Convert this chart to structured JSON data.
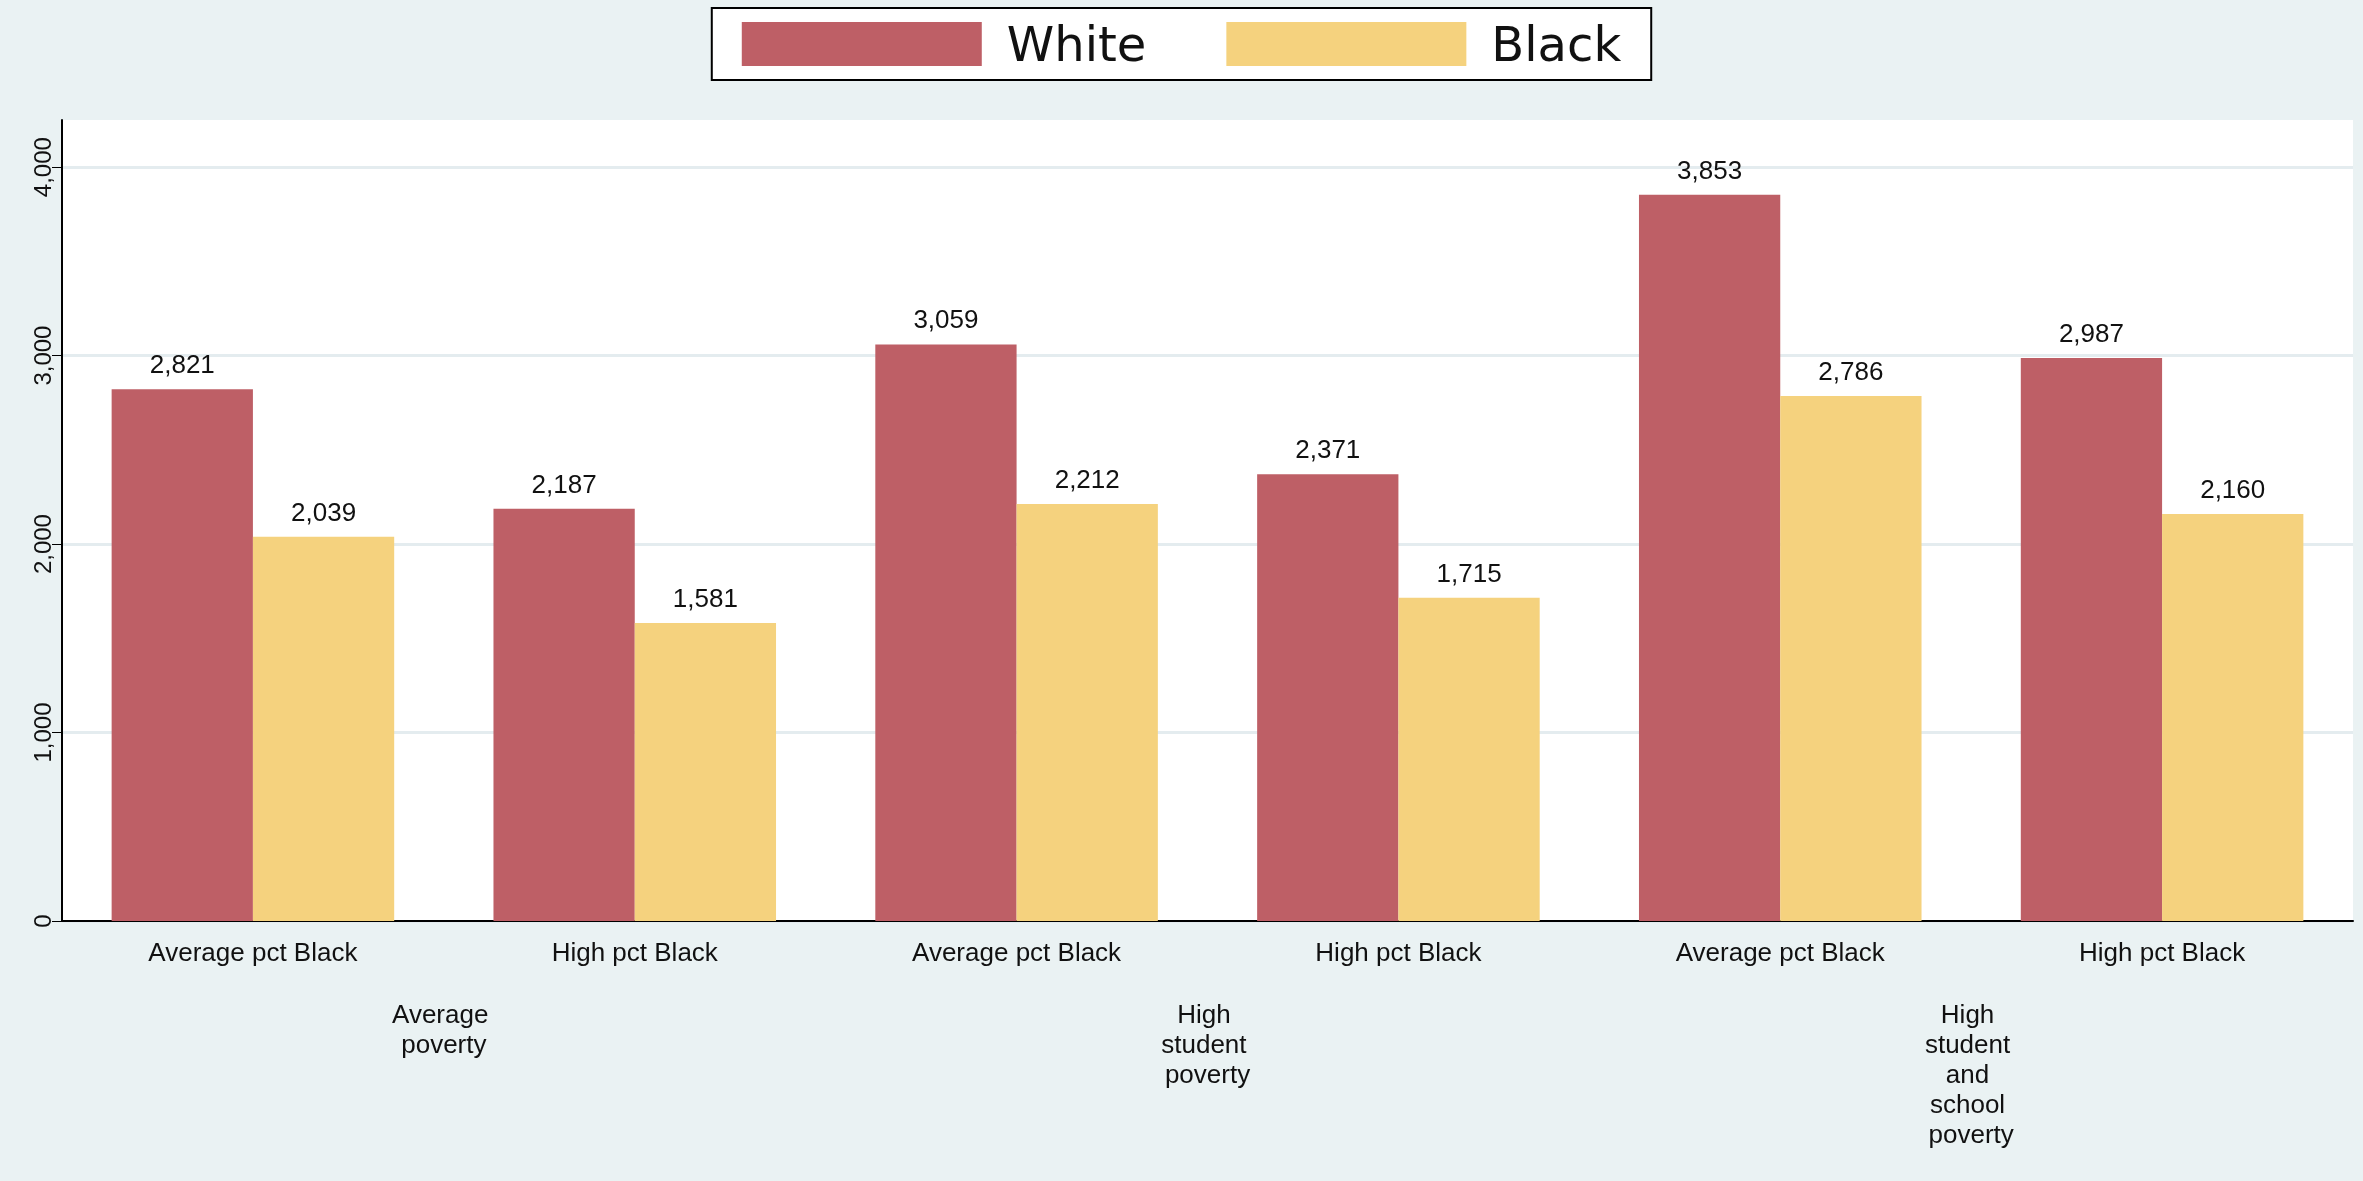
{
  "chart_data": {
    "type": "bar",
    "categories": [
      "Average pct Black",
      "High pct Black",
      "Average pct Black",
      "High pct Black",
      "Average pct Black",
      "High pct Black"
    ],
    "series": [
      {
        "name": "White",
        "color": "#be5f66",
        "values": [
          2821,
          2187,
          3059,
          2371,
          3853,
          2987
        ],
        "value_labels": [
          "2,821",
          "2,187",
          "3,059",
          "2,371",
          "3,853",
          "2,987"
        ]
      },
      {
        "name": "Black",
        "color": "#f5d27e",
        "values": [
          2039,
          1581,
          2212,
          1715,
          2786,
          2160
        ],
        "value_labels": [
          "2,039",
          "1,581",
          "2,212",
          "1,715",
          "2,786",
          "2,160"
        ]
      }
    ],
    "annotations": [
      "Average poverty",
      "High student poverty",
      "High student and school poverty"
    ],
    "ylim": [
      0,
      4250
    ],
    "yticks": [
      0,
      {
        "value": 1000,
        "label": "1,000"
      },
      {
        "value": 2000,
        "label": "2,000"
      },
      {
        "value": 3000,
        "label": "3,000"
      },
      {
        "value": 4000,
        "label": "4,000"
      }
    ],
    "grid": "y",
    "legend": "top"
  }
}
